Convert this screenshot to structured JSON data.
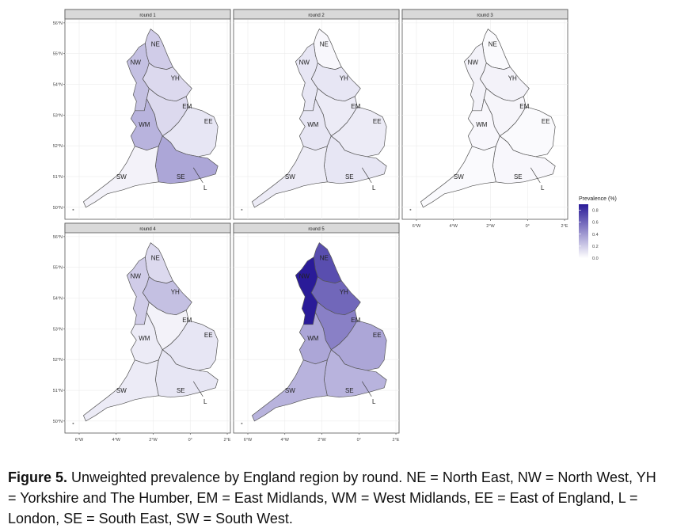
{
  "chart_data": {
    "type": "choropleth",
    "regions": [
      "NE",
      "NW",
      "YH",
      "EM",
      "WM",
      "EE",
      "L",
      "SE",
      "SW"
    ],
    "panels": [
      {
        "title": "round 1",
        "values": [
          0.2,
          0.25,
          0.15,
          0.15,
          0.3,
          0.1,
          0.4,
          0.35,
          0.05
        ]
      },
      {
        "title": "round 2",
        "values": [
          0.03,
          0.1,
          0.1,
          0.08,
          0.1,
          0.08,
          0.25,
          0.1,
          0.08
        ]
      },
      {
        "title": "round 3",
        "values": [
          0.02,
          0.05,
          0.05,
          0.04,
          0.03,
          0.02,
          0.08,
          0.03,
          0.02
        ]
      },
      {
        "title": "round 4",
        "values": [
          0.15,
          0.2,
          0.25,
          0.05,
          0.08,
          0.1,
          0.1,
          0.1,
          0.08
        ]
      },
      {
        "title": "round 5",
        "values": [
          0.7,
          0.9,
          0.6,
          0.5,
          0.35,
          0.35,
          0.55,
          0.3,
          0.3
        ]
      }
    ],
    "xlim": [
      -6.77,
      2.17
    ],
    "ylim": [
      49.61,
      56.1
    ],
    "xticks": [
      {
        "value": -6,
        "label": "6°W"
      },
      {
        "value": -4,
        "label": "4°W"
      },
      {
        "value": -2,
        "label": "2°W"
      },
      {
        "value": 0,
        "label": "0°"
      },
      {
        "value": 2,
        "label": "2°E"
      }
    ],
    "yticks": [
      {
        "value": 50,
        "label": "50°N"
      },
      {
        "value": 51,
        "label": "51°N"
      },
      {
        "value": 52,
        "label": "52°N"
      },
      {
        "value": 53,
        "label": "53°N"
      },
      {
        "value": 54,
        "label": "54°N"
      },
      {
        "value": 55,
        "label": "55°N"
      },
      {
        "value": 56,
        "label": "56°N"
      }
    ],
    "grid": true,
    "legend": {
      "title": "Prevalence (%)",
      "lim": [
        0,
        0.9
      ],
      "ticks": [
        {
          "value": 0,
          "label": "0.0"
        },
        0.2,
        0.4,
        0.6,
        0.8
      ],
      "colors": [
        "#ffffff",
        "#2a1b98"
      ]
    }
  },
  "caption": {
    "label": "Figure 5.",
    "text": " Unweighted prevalence by England region by round. NE = North East, NW = North West, YH = Yorkshire and The Humber, EM = East Midlands, WM = West Midlands, EE = East of England, L = London, SE = South East, SW = South West."
  }
}
